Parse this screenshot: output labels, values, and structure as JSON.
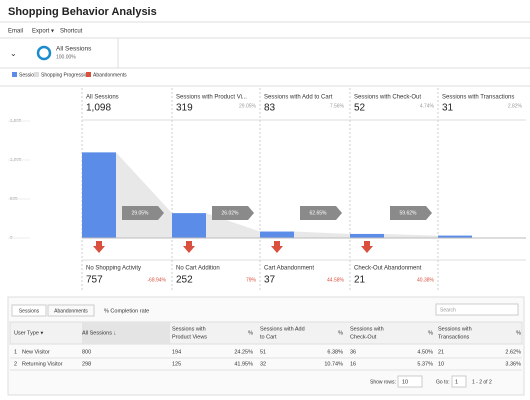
{
  "header": {
    "title": "Shopping Behavior Analysis",
    "toolbar": [
      "Email",
      "Export ▾",
      "Shortcut"
    ],
    "segment": {
      "name": "All Sessions",
      "percent": "100.00%"
    }
  },
  "legend": [
    {
      "name": "Sessions",
      "color": "#5b8de8"
    },
    {
      "name": "Shopping Progression",
      "color": "#dddddd"
    },
    {
      "name": "Abandonments",
      "color": "#d9503f"
    }
  ],
  "funnel": {
    "ylim": [
      0,
      1500
    ],
    "yticks": [
      0,
      {
        "value": 500,
        "label": "500"
      },
      {
        "value": 1000,
        "label": "1,000"
      },
      {
        "value": 1500,
        "label": "1,500"
      }
    ],
    "stages": [
      {
        "name": "All Sessions",
        "value": 1098,
        "value_label": "1,098"
      },
      {
        "name": "Sessions with Product Vi...",
        "value": 319,
        "percent": "29.05%"
      },
      {
        "name": "Sessions with Add to Cart",
        "value": 83,
        "percent": "7.56%"
      },
      {
        "name": "Sessions with Check-Out",
        "value": 52,
        "percent": "4.74%"
      },
      {
        "name": "Sessions with Transactions",
        "value": 31,
        "percent": "2.82%"
      }
    ],
    "progression": [
      "29.05%",
      "26.02%",
      "62.65%",
      "59.62%"
    ],
    "abandonments": [
      {
        "name": "No Shopping Activity",
        "value": 757,
        "percent": "-68.94%"
      },
      {
        "name": "No Cart Addition",
        "value": 252,
        "percent": "79%"
      },
      {
        "name": "Cart Abandonment",
        "value": 37,
        "percent": "44.58%"
      },
      {
        "name": "Check-Out Abandonment",
        "value": 21,
        "percent": "40.38%"
      }
    ]
  },
  "table": {
    "tabs": [
      "Sessions",
      "Abandonments"
    ],
    "completion": "% Completion rate",
    "search": "Search",
    "headers": [
      [
        "User Type ▾"
      ],
      [
        "All Sessions ↓"
      ],
      [
        "Sessions with",
        "Product Views"
      ],
      [
        "%"
      ],
      [
        "Sessions with Add",
        "to Cart"
      ],
      [
        "%"
      ],
      [
        "Sessions with",
        "Check-Out"
      ],
      [
        "%"
      ],
      [
        "Sessions with",
        "Transactions"
      ],
      [
        "%"
      ]
    ],
    "rows": [
      [
        "1",
        "New Visitor",
        800,
        194,
        "24.25%",
        51,
        "6.38%",
        36,
        "4.50%",
        21,
        "2.62%"
      ],
      [
        "2",
        "Returning Visitor",
        298,
        125,
        "41.95%",
        32,
        "10.74%",
        16,
        "5.37%",
        10,
        "3.36%"
      ]
    ],
    "footer": {
      "show_rows": "Show rows:",
      "rows_value": 10,
      "goto": "Go to:",
      "goto_value": 1,
      "range": "1 - 2 of 2"
    }
  }
}
